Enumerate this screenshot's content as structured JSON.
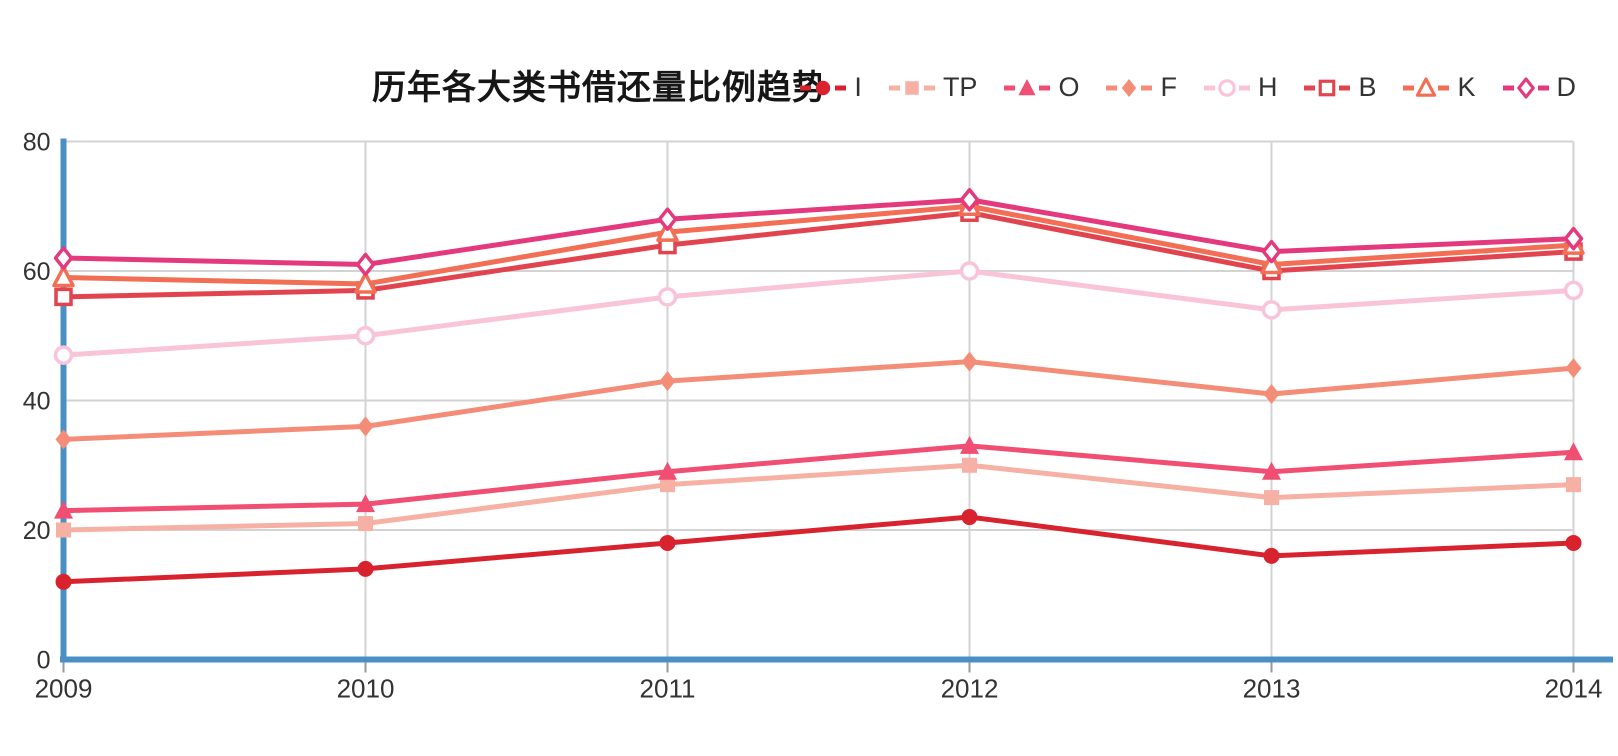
{
  "page": {
    "background": "#ffffff"
  },
  "chart_data": {
    "type": "line",
    "title": "历年各大类书借还量比例趋势",
    "categories": [
      "2009",
      "2010",
      "2011",
      "2012",
      "2013",
      "2014"
    ],
    "xlabel": "",
    "ylabel": "",
    "ylim": [
      0,
      80
    ],
    "yticks": [
      0,
      20,
      40,
      60,
      80
    ],
    "grid": true,
    "legend_position": "top-right",
    "axis_color": "#4a90c5",
    "grid_color": "#d3d3d3",
    "tick_color": "#999999",
    "series": [
      {
        "name": "I",
        "marker": "circle",
        "fill": "solid",
        "color": "#d8232f",
        "values": [
          12,
          14,
          18,
          22,
          16,
          18
        ]
      },
      {
        "name": "TP",
        "marker": "square",
        "fill": "solid",
        "color": "#f6b0a4",
        "values": [
          20,
          21,
          27,
          30,
          25,
          27
        ]
      },
      {
        "name": "O",
        "marker": "triangle",
        "fill": "solid",
        "color": "#f04e72",
        "values": [
          23,
          24,
          29,
          33,
          29,
          32
        ]
      },
      {
        "name": "F",
        "marker": "diamond",
        "fill": "solid",
        "color": "#f48d78",
        "values": [
          34,
          36,
          43,
          46,
          41,
          45
        ]
      },
      {
        "name": "H",
        "marker": "circle",
        "fill": "open",
        "color": "#f9c4d8",
        "values": [
          47,
          50,
          56,
          60,
          54,
          57
        ]
      },
      {
        "name": "B",
        "marker": "square",
        "fill": "open",
        "color": "#e2444f",
        "values": [
          56,
          57,
          64,
          69,
          60,
          63
        ]
      },
      {
        "name": "K",
        "marker": "triangle",
        "fill": "open",
        "color": "#f26e54",
        "values": [
          59,
          58,
          66,
          70,
          61,
          64
        ]
      },
      {
        "name": "D",
        "marker": "diamond",
        "fill": "open",
        "color": "#e4397d",
        "values": [
          62,
          61,
          68,
          71,
          63,
          65
        ]
      }
    ]
  }
}
